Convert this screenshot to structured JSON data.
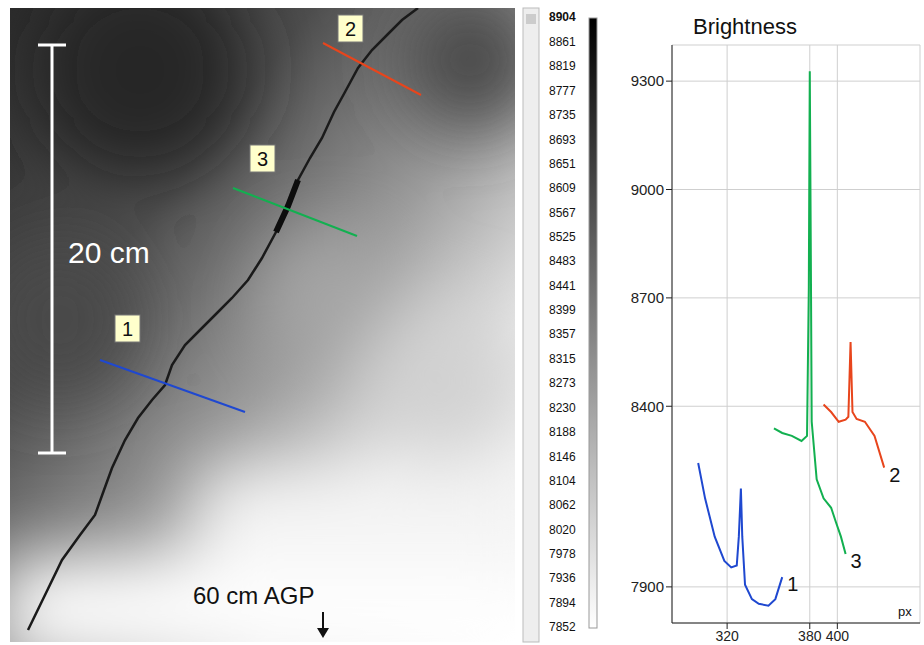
{
  "chart_data": {
    "type": "line",
    "y_label": "Brightness",
    "x_label": "px",
    "xlim": [
      280,
      460
    ],
    "xticks": [
      320,
      380,
      400
    ],
    "ylim": [
      7800,
      9400
    ],
    "yticks": [
      7900,
      8400,
      8700,
      9000,
      9300
    ],
    "grid": true,
    "series": [
      {
        "name": "1",
        "color": "#1f48d0",
        "x": [
          299,
          304,
          311,
          318,
          323,
          327,
          328.5,
          330,
          331,
          333,
          338,
          343,
          350,
          355,
          360
        ],
        "values": [
          8243,
          8145,
          8039,
          7972,
          7954,
          7959,
          8039,
          8172,
          8039,
          7906,
          7866,
          7853,
          7848,
          7866,
          7927
        ]
      },
      {
        "name": "2",
        "color": "#e8451c",
        "x": [
          390,
          395.5,
          401,
          406,
          408,
          409.6,
          411,
          414,
          420,
          427,
          434
        ],
        "values": [
          8405,
          8384,
          8357,
          8363,
          8371,
          8578,
          8384,
          8365,
          8357,
          8318,
          8230
        ]
      },
      {
        "name": "3",
        "color": "#12b050",
        "x": [
          354,
          360,
          367,
          374,
          378,
          379.3,
          380,
          380.7,
          381.4,
          385,
          390,
          395.5,
          399,
          402.6,
          406
        ],
        "values": [
          8339,
          8326,
          8318,
          8304,
          8318,
          8729,
          9327,
          8862,
          8357,
          8198,
          8145,
          8119,
          8079,
          8039,
          7991
        ]
      }
    ]
  },
  "image": {
    "scale_bar_label": "20 cm",
    "annotation": "60 cm AGP",
    "profiles": [
      {
        "label": "1",
        "color": "#1f48d0"
      },
      {
        "label": "2",
        "color": "#e8451c"
      },
      {
        "label": "3",
        "color": "#12b050"
      }
    ]
  },
  "colorbar": {
    "range": [
      7852,
      8904
    ],
    "ticks": [
      8904,
      8861,
      8819,
      8777,
      8735,
      8693,
      8651,
      8609,
      8567,
      8525,
      8483,
      8441,
      8399,
      8357,
      8315,
      8273,
      8230,
      8188,
      8146,
      8104,
      8062,
      8020,
      7978,
      7936,
      7894,
      7852
    ]
  }
}
